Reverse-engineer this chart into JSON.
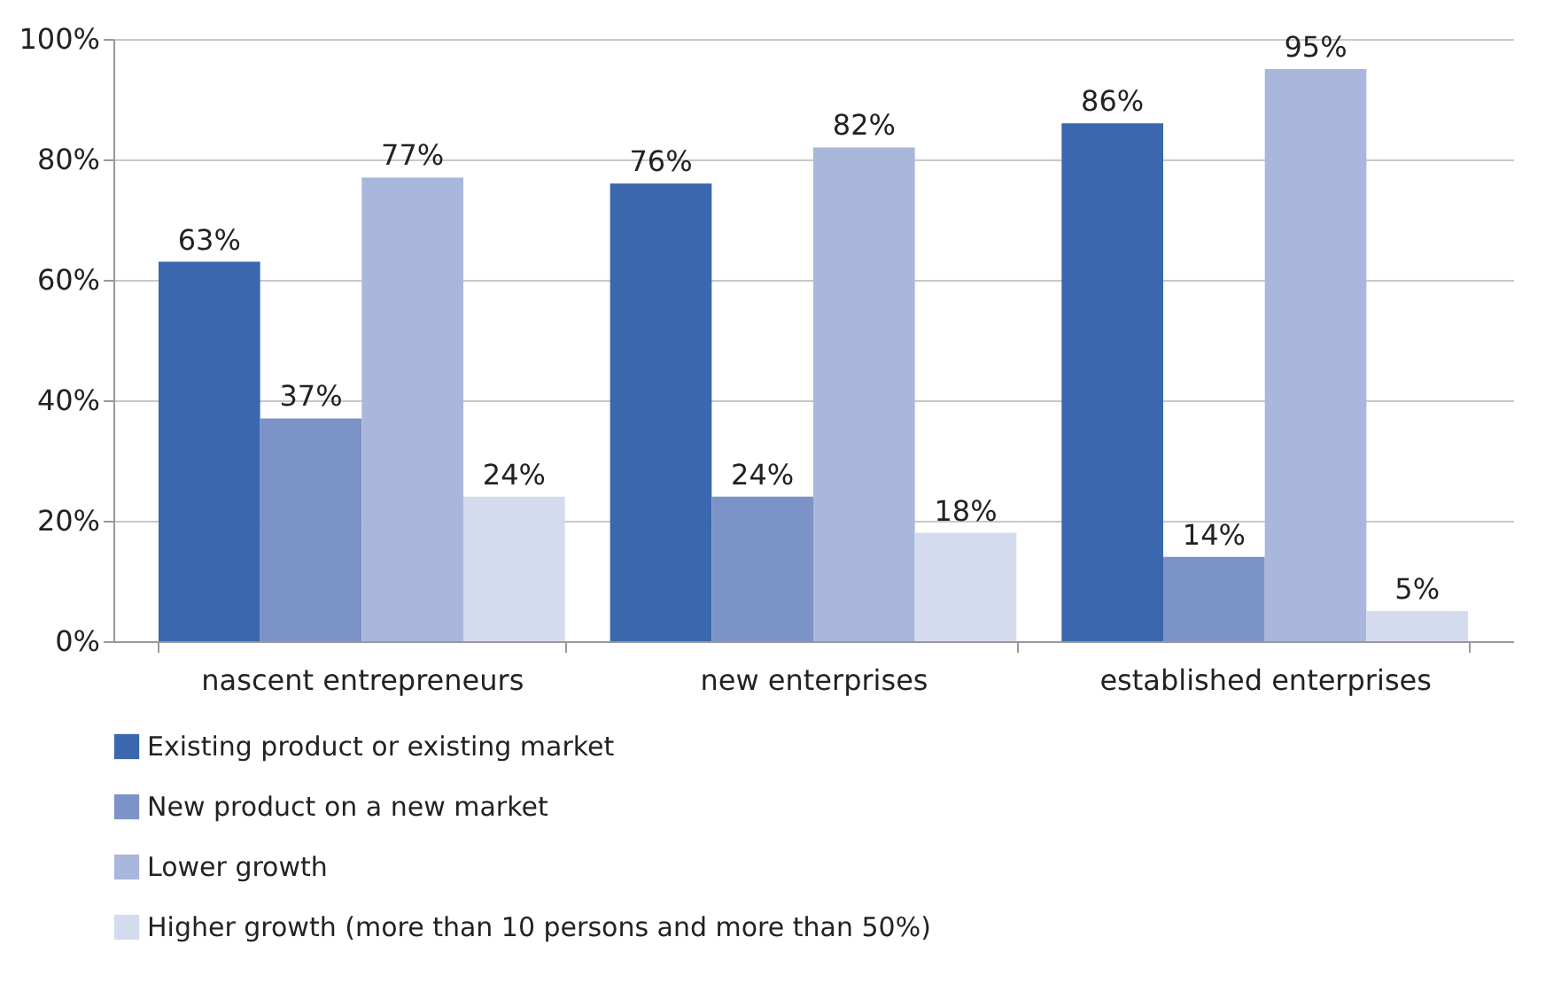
{
  "chart_data": {
    "type": "bar",
    "categories": [
      "nascent entrepreneurs",
      "new enterprises",
      "established enterprises"
    ],
    "series": [
      {
        "name": "Existing product or existing market",
        "color": "#3a67ad",
        "values": [
          63,
          76,
          86
        ],
        "value_labels": [
          "63%",
          "76%",
          "86%"
        ]
      },
      {
        "name": "New product on a new market",
        "color": "#7b93c6",
        "values": [
          37,
          24,
          14
        ],
        "value_labels": [
          "37%",
          "24%",
          "14%"
        ]
      },
      {
        "name": "Lower growth",
        "color": "#a9b7dc",
        "values": [
          77,
          82,
          95
        ],
        "value_labels": [
          "77%",
          "82%",
          "95%"
        ]
      },
      {
        "name": "Higher growth (more than 10 persons and more than 50%)",
        "color": "#d5dbef",
        "values": [
          24,
          18,
          5
        ],
        "value_labels": [
          "24%",
          "18%",
          "5%"
        ]
      }
    ],
    "ylim": [
      0,
      100
    ],
    "yticks": [
      {
        "value": 0,
        "label": "0%"
      },
      {
        "value": 20,
        "label": "20%"
      },
      {
        "value": 40,
        "label": "40%"
      },
      {
        "value": 60,
        "label": "60%"
      },
      {
        "value": 80,
        "label": "80%"
      },
      {
        "value": 100,
        "label": "100%"
      }
    ],
    "grid": "y",
    "legend": "bottom"
  }
}
